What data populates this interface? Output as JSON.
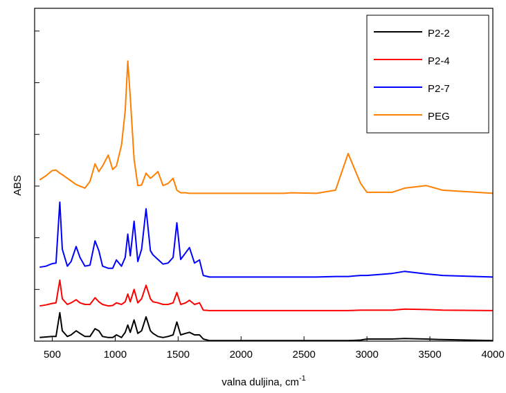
{
  "chart_data": {
    "type": "line",
    "x_label": "valna duljina, cm",
    "x_label_exponent": "-1",
    "y_label": "ABS",
    "x": [
      400,
      450,
      500,
      530,
      560,
      580,
      620,
      650,
      690,
      720,
      760,
      800,
      840,
      870,
      900,
      945,
      980,
      1010,
      1050,
      1080,
      1100,
      1120,
      1150,
      1180,
      1210,
      1245,
      1280,
      1300,
      1340,
      1380,
      1420,
      1460,
      1490,
      1520,
      1560,
      1590,
      1630,
      1670,
      1700,
      1750,
      1800,
      2000,
      2340,
      2400,
      2600,
      2750,
      2850,
      2950,
      3000,
      3200,
      3300,
      3470,
      3600,
      4000
    ],
    "series": [
      {
        "name": "P2-2",
        "color": "#000000",
        "values": [
          0.07,
          0.08,
          0.09,
          0.09,
          0.55,
          0.2,
          0.09,
          0.12,
          0.2,
          0.15,
          0.09,
          0.09,
          0.24,
          0.2,
          0.09,
          0.07,
          0.07,
          0.12,
          0.07,
          0.17,
          0.31,
          0.17,
          0.41,
          0.15,
          0.2,
          0.47,
          0.2,
          0.15,
          0.09,
          0.07,
          0.09,
          0.12,
          0.37,
          0.12,
          0.15,
          0.17,
          0.12,
          0.12,
          0.04,
          0.01,
          0.01,
          0.01,
          0.01,
          0.01,
          0.01,
          0.01,
          0.01,
          0.02,
          0.04,
          0.04,
          0.05,
          0.04,
          0.03,
          0.01
        ]
      },
      {
        "name": "P2-4",
        "color": "#ff0000",
        "values": [
          0.68,
          0.7,
          0.73,
          0.74,
          1.18,
          0.82,
          0.71,
          0.74,
          0.8,
          0.74,
          0.71,
          0.71,
          0.84,
          0.76,
          0.71,
          0.68,
          0.69,
          0.74,
          0.71,
          0.76,
          0.91,
          0.76,
          1.0,
          0.74,
          0.82,
          1.08,
          0.82,
          0.76,
          0.74,
          0.71,
          0.71,
          0.74,
          0.94,
          0.71,
          0.74,
          0.79,
          0.71,
          0.74,
          0.6,
          0.59,
          0.59,
          0.59,
          0.59,
          0.59,
          0.59,
          0.59,
          0.59,
          0.6,
          0.6,
          0.6,
          0.62,
          0.61,
          0.6,
          0.59
        ]
      },
      {
        "name": "P2-7",
        "color": "#0000ff",
        "values": [
          1.43,
          1.45,
          1.5,
          1.51,
          2.69,
          1.78,
          1.45,
          1.54,
          1.83,
          1.62,
          1.45,
          1.47,
          1.94,
          1.75,
          1.45,
          1.41,
          1.41,
          1.57,
          1.45,
          1.62,
          2.07,
          1.65,
          2.32,
          1.54,
          1.78,
          2.56,
          1.75,
          1.67,
          1.58,
          1.49,
          1.51,
          1.62,
          2.29,
          1.58,
          1.71,
          1.81,
          1.51,
          1.57,
          1.27,
          1.24,
          1.24,
          1.24,
          1.24,
          1.24,
          1.24,
          1.25,
          1.25,
          1.27,
          1.27,
          1.31,
          1.35,
          1.3,
          1.27,
          1.24
        ]
      },
      {
        "name": "PEG",
        "color": "#ff8000",
        "values": [
          3.12,
          3.2,
          3.3,
          3.31,
          3.25,
          3.22,
          3.15,
          3.1,
          3.03,
          3.0,
          2.96,
          3.09,
          3.43,
          3.28,
          3.39,
          3.6,
          3.32,
          3.39,
          3.79,
          4.46,
          5.42,
          4.72,
          3.52,
          3.01,
          3.02,
          3.25,
          3.15,
          3.19,
          3.28,
          3.01,
          3.05,
          3.15,
          2.92,
          2.87,
          2.87,
          2.86,
          2.86,
          2.86,
          2.86,
          2.86,
          2.86,
          2.86,
          2.86,
          2.87,
          2.86,
          2.92,
          3.63,
          3.05,
          2.88,
          2.88,
          2.96,
          3.01,
          2.92,
          2.86
        ]
      }
    ],
    "xlim": [
      360,
      4000
    ],
    "xticks": [
      500,
      1000,
      1500,
      2000,
      2500,
      3000,
      3500,
      4000
    ],
    "ylim": [
      0,
      6.44
    ],
    "yticks": [
      1,
      2,
      3,
      4,
      5,
      6
    ],
    "legend": "top-right"
  }
}
